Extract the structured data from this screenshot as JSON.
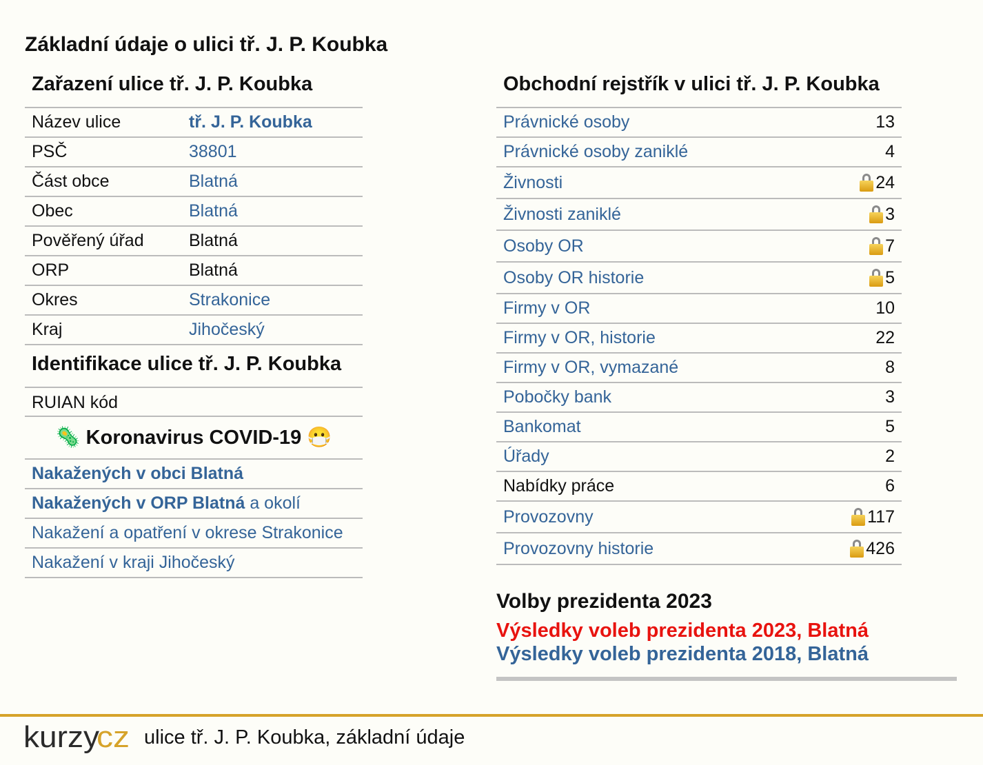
{
  "page_title": "Základní údaje o ulici tř. J. P. Koubka",
  "zarazeni": {
    "title": "Zařazení ulice tř. J. P. Koubka",
    "rows": [
      {
        "label": "Název ulice",
        "value": "tř. J. P. Koubka"
      },
      {
        "label": "PSČ",
        "value": "38801"
      },
      {
        "label": "Část obce",
        "value": "Blatná"
      },
      {
        "label": "Obec",
        "value": "Blatná"
      },
      {
        "label": "Pověřený úřad",
        "value": "Blatná"
      },
      {
        "label": "ORP",
        "value": "Blatná"
      },
      {
        "label": "Okres",
        "value": "Strakonice"
      },
      {
        "label": "Kraj",
        "value": "Jihočeský"
      }
    ]
  },
  "identifikace": {
    "title": "Identifikace ulice tř. J. P. Koubka",
    "ruian_label": "RUIAN kód"
  },
  "covid": {
    "title": "🦠 Koronavirus COVID-19 😷",
    "rows": [
      {
        "link": "Nakažených v obci Blatná",
        "suffix": ""
      },
      {
        "link": "Nakažených v ORP Blatná",
        "suffix": " a okolí"
      },
      {
        "link": "Nakažení a opatření v okrese Strakonice",
        "suffix": ""
      },
      {
        "link": "Nakažení v kraji Jihočeský",
        "suffix": ""
      }
    ]
  },
  "rejstrik": {
    "title": "Obchodní rejstřík v ulici tř. J. P. Koubka",
    "rows": [
      {
        "label": "Právnické osoby",
        "value": "13",
        "locked": false
      },
      {
        "label": "Právnické osoby zaniklé",
        "value": "4",
        "locked": false
      },
      {
        "label": "Živnosti",
        "value": "24",
        "locked": true
      },
      {
        "label": "Živnosti zaniklé",
        "value": "3",
        "locked": true
      },
      {
        "label": "Osoby OR",
        "value": "7",
        "locked": true
      },
      {
        "label": "Osoby OR historie",
        "value": "5",
        "locked": true
      },
      {
        "label": "Firmy v OR",
        "value": "10",
        "locked": false
      },
      {
        "label": "Firmy v OR, historie",
        "value": "22",
        "locked": false
      },
      {
        "label": "Firmy v OR, vymazané",
        "value": "8",
        "locked": false
      },
      {
        "label": "Pobočky bank",
        "value": "3",
        "locked": false
      },
      {
        "label": "Bankomat",
        "value": "5",
        "locked": false
      },
      {
        "label": "Úřady",
        "value": "2",
        "locked": false
      },
      {
        "label": "Nabídky práce",
        "value": "6",
        "locked": false
      },
      {
        "label": "Provozovny",
        "value": "117",
        "locked": true
      },
      {
        "label": "Provozovny historie",
        "value": "426",
        "locked": true
      }
    ]
  },
  "volby": {
    "title": "Volby prezidenta 2023",
    "link_2023": "Výsledky voleb prezidenta 2023, Blatná",
    "link_2018": "Výsledky voleb prezidenta 2018, Blatná"
  },
  "footer": {
    "logo_text": "kurzycz",
    "text": "ulice tř. J. P. Koubka, základní údaje"
  },
  "colors": {
    "link": "#346498",
    "red_link": "#e8130f",
    "footer_line": "#d6a32a",
    "lock": "#e4b02c"
  },
  "icons": {
    "lock": "lock-icon",
    "covid": "virus-icon",
    "mask": "face-with-mask-icon"
  }
}
